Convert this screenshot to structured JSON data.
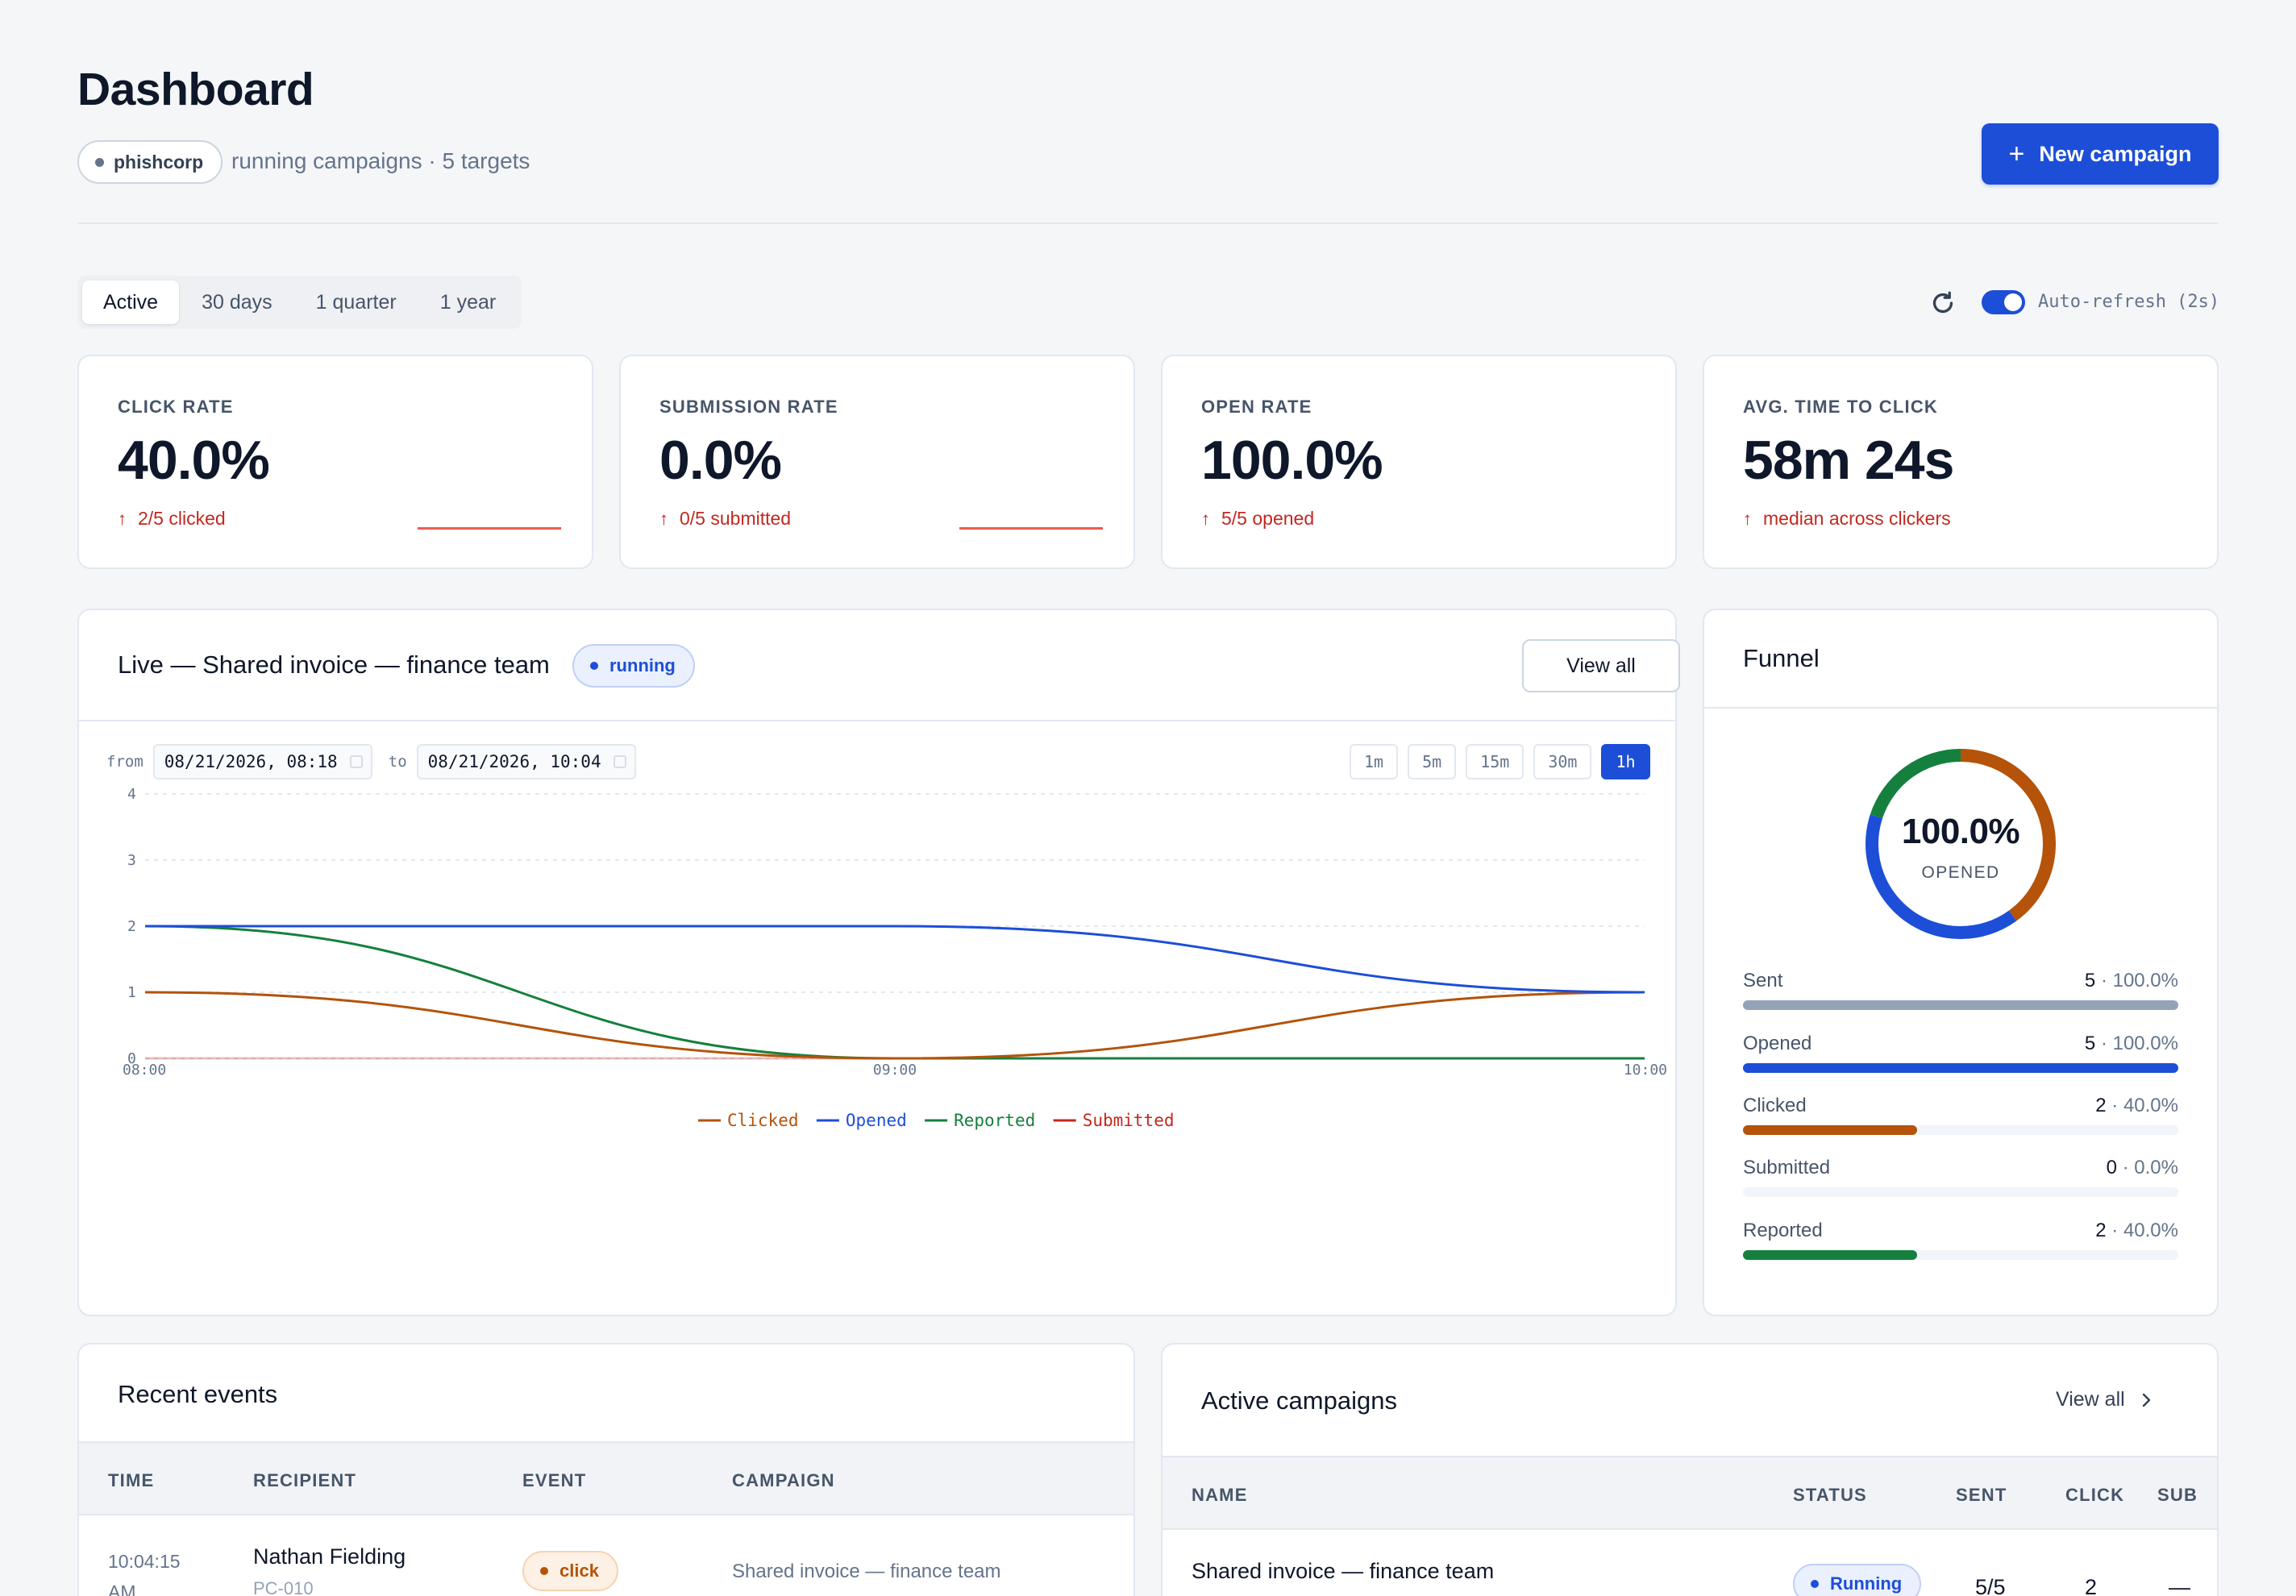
{
  "header": {
    "title": "Dashboard",
    "org": "phishcorp",
    "subtitle": "running campaigns · 5 targets",
    "new_campaign_label": "New campaign"
  },
  "range_tabs": [
    "Active",
    "30 days",
    "1 quarter",
    "1 year"
  ],
  "active_range": "Active",
  "auto_refresh": {
    "label": "Auto-refresh (2s)",
    "enabled": true
  },
  "stats": [
    {
      "label": "CLICK RATE",
      "value": "40.0%",
      "delta": "2/5 clicked"
    },
    {
      "label": "SUBMISSION RATE",
      "value": "0.0%",
      "delta": "0/5 submitted"
    },
    {
      "label": "OPEN RATE",
      "value": "100.0%",
      "delta": "5/5 opened"
    },
    {
      "label": "AVG. TIME TO CLICK",
      "value": "58m 24s",
      "delta": "median across clickers"
    }
  ],
  "live": {
    "title": "Live — Shared invoice — finance team",
    "status": "running",
    "view_all_label": "View all",
    "from_label": "from",
    "from_value": "08/21/2026, 08:18",
    "to_label": "to",
    "to_value": "08/21/2026, 10:04",
    "intervals": [
      "1m",
      "5m",
      "15m",
      "30m",
      "1h"
    ],
    "active_interval": "1h"
  },
  "chart_data": {
    "type": "line",
    "x": [
      "08:00",
      "09:00",
      "10:00"
    ],
    "ylim": [
      0,
      4
    ],
    "y_ticks": [
      "0",
      "1",
      "2",
      "3",
      "4"
    ],
    "grid": true,
    "legend_position": "bottom-center",
    "series": [
      {
        "name": "Clicked",
        "color": "#b45309",
        "values": [
          1,
          0,
          1
        ]
      },
      {
        "name": "Opened",
        "color": "#1d4ed8",
        "values": [
          2,
          2,
          1
        ]
      },
      {
        "name": "Reported",
        "color": "#15803d",
        "values": [
          2,
          0,
          0
        ]
      },
      {
        "name": "Submitted",
        "color": "#c2281f",
        "values": [
          0,
          0,
          0
        ]
      }
    ]
  },
  "funnel": {
    "title": "Funnel",
    "center_value": "100.0%",
    "center_label": "OPENED",
    "rows": [
      {
        "label": "Sent",
        "count": "5",
        "pct": "· 100.0%",
        "fraction": 1.0,
        "color": "#94a3b8"
      },
      {
        "label": "Opened",
        "count": "5",
        "pct": "· 100.0%",
        "fraction": 1.0,
        "color": "#1d4ed8"
      },
      {
        "label": "Clicked",
        "count": "2",
        "pct": "· 40.0%",
        "fraction": 0.4,
        "color": "#b45309"
      },
      {
        "label": "Submitted",
        "count": "0",
        "pct": "· 0.0%",
        "fraction": 0.0,
        "color": "#c2281f"
      },
      {
        "label": "Reported",
        "count": "2",
        "pct": "· 40.0%",
        "fraction": 0.4,
        "color": "#15803d"
      }
    ],
    "donut_segments": [
      {
        "name": "clicked",
        "fraction": 0.4,
        "color": "#b45309"
      },
      {
        "name": "opened",
        "fraction": 0.4,
        "color": "#1d4ed8"
      },
      {
        "name": "reported",
        "fraction": 0.2,
        "color": "#15803d"
      }
    ]
  },
  "recent_events": {
    "title": "Recent events",
    "columns": [
      "TIME",
      "RECIPIENT",
      "EVENT",
      "CAMPAIGN"
    ],
    "rows": [
      {
        "time": "10:04:15 AM",
        "recipient": "Nathan Fielding",
        "host": "PC-010",
        "event": "click",
        "campaign": "Shared invoice — finance team"
      }
    ]
  },
  "active_campaigns": {
    "title": "Active campaigns",
    "view_all_label": "View all",
    "columns": [
      "NAME",
      "STATUS",
      "SENT",
      "CLICK",
      "SUB"
    ],
    "rows": [
      {
        "name": "Shared invoice — finance team",
        "status": "Running",
        "sent": "5/5",
        "click": "2",
        "sub": "—"
      }
    ]
  }
}
